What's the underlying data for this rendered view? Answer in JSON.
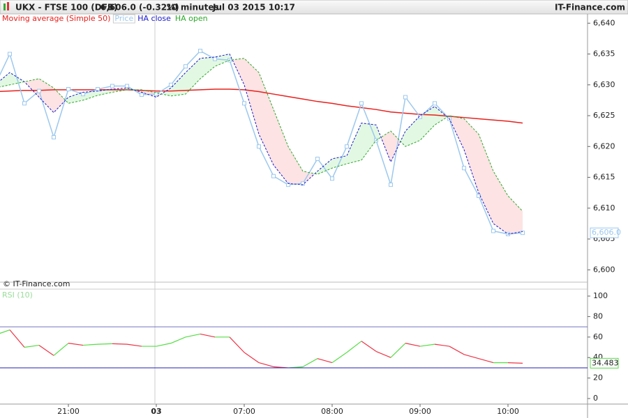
{
  "header": {
    "title": "UKX - FTSE 100 (DFB)",
    "quote": "6,606.0 (-0.32%)",
    "interval": "10 minutes",
    "date": "Jul 03 2015 10:17",
    "brand": "IT-Finance.com"
  },
  "watermark": "© IT-Finance.com",
  "chart_data": [
    {
      "type": "line",
      "fill_up": "#e3f8e3",
      "fill_down": "#fde3e3",
      "ylim": [
        6598,
        6641.5
      ],
      "yticks": [
        {
          "value": 6600,
          "label": "6,600"
        },
        {
          "value": 6605,
          "label": "6,605"
        },
        {
          "value": 6610,
          "label": "6,610"
        },
        {
          "value": 6615,
          "label": "6,615"
        },
        {
          "value": 6620,
          "label": "6,620"
        },
        {
          "value": 6625,
          "label": "6,625"
        },
        {
          "value": 6630,
          "label": "6,630"
        },
        {
          "value": 6635,
          "label": "6,635"
        },
        {
          "value": 6640,
          "label": "6,640"
        }
      ],
      "series": [
        {
          "name": "Moving average (Simple 50)",
          "color": "#e8201c",
          "style": "solid",
          "values": [
            6628.9,
            6629,
            6629.1,
            6629.1,
            6629.2,
            6629.2,
            6629.2,
            6629.2,
            6629.2,
            6629.2,
            6629.1,
            6629,
            6629,
            6629.1,
            6629.2,
            6629.3,
            6629.3,
            6629.2,
            6628.9,
            6628.5,
            6628.1,
            6627.7,
            6627.3,
            6627,
            6626.6,
            6626.3,
            6626,
            6625.6,
            6625.4,
            6625.2,
            6625.1,
            6624.9,
            6624.7,
            6624.5,
            6624.3,
            6624.1,
            6623.8
          ]
        },
        {
          "name": "Price",
          "color": "#9cc8ee",
          "style": "solid",
          "markers": true,
          "boxed": true,
          "values": [
            6630,
            6635,
            6627,
            6629,
            6621.5,
            6629.3,
            6628.5,
            6629.3,
            6629.8,
            6629.8,
            6628.4,
            6628.5,
            6630,
            6633,
            6635.5,
            6634.2,
            6634,
            6627,
            6620,
            6615.2,
            6613.8,
            6614,
            6618,
            6614.8,
            6620,
            6627,
            6621,
            6613.8,
            6628,
            6624.8,
            6627,
            6624.5,
            6616.5,
            6612,
            6606.3,
            6605.8,
            6606
          ],
          "value_labels": [
            null,
            null,
            null,
            null,
            null,
            null,
            null,
            null,
            null,
            null,
            null,
            null,
            null,
            null,
            null,
            null,
            null,
            null,
            null,
            null,
            null,
            null,
            null,
            null,
            null,
            null,
            null,
            null,
            null,
            null,
            null,
            null,
            null,
            null,
            null,
            null,
            "6,606.0"
          ]
        },
        {
          "name": "HA close",
          "color": "#1a1acc",
          "style": "dashed",
          "values": [
            6630,
            6632,
            6630.5,
            6628,
            6625.5,
            6628,
            6628.8,
            6629,
            6629.3,
            6629.5,
            6628.8,
            6628,
            6629.5,
            6632,
            6634.3,
            6634.5,
            6635,
            6630,
            6622,
            6617,
            6614,
            6613.8,
            6616,
            6618,
            6618.5,
            6623.8,
            6623.5,
            6617.5,
            6622.5,
            6625,
            6626.5,
            6624.5,
            6619.5,
            6612.5,
            6607.5,
            6605.8,
            6606.2
          ]
        },
        {
          "name": "HA open",
          "color": "#2aa82a",
          "style": "dashed",
          "values": [
            6629.5,
            6630,
            6630.5,
            6631,
            6629.5,
            6627,
            6627.5,
            6628.3,
            6628.8,
            6629.2,
            6629.2,
            6628.7,
            6628.2,
            6628.5,
            6631,
            6633,
            6634,
            6634.3,
            6632,
            6626,
            6620,
            6616,
            6615.5,
            6616.5,
            6617.2,
            6617.8,
            6621,
            6622.5,
            6620,
            6621,
            6623.5,
            6625,
            6624.5,
            6622,
            6616,
            6612,
            6609.5
          ]
        }
      ]
    },
    {
      "type": "rsi",
      "title": "RSI (10)",
      "ylim": [
        -5.4,
        106.8
      ],
      "yticks": [
        0,
        20,
        40,
        60,
        80,
        100
      ],
      "levels": [
        {
          "value": 70,
          "color": "#7070c0"
        },
        {
          "value": 30,
          "color": "#2020b0"
        }
      ],
      "categories": [
        null,
        null,
        null,
        null,
        null,
        "21:00",
        null,
        null,
        null,
        null,
        null,
        "03",
        null,
        null,
        null,
        null,
        null,
        "07:00",
        null,
        null,
        null,
        null,
        null,
        "08:00",
        null,
        null,
        null,
        null,
        null,
        "09:00",
        null,
        null,
        null,
        null,
        null,
        "10:00",
        null
      ],
      "series": [
        {
          "name": "RSI",
          "up_color": "#55dd44",
          "down_color": "#ee3344",
          "values": [
            62,
            67,
            50,
            52,
            42,
            54,
            52,
            53,
            53.5,
            53,
            51,
            51,
            54,
            60,
            63,
            60,
            60,
            45,
            35,
            31,
            30,
            31,
            39,
            35,
            45,
            56,
            46,
            40,
            54,
            51,
            53,
            51,
            43,
            39,
            35,
            35,
            34.483
          ]
        }
      ]
    }
  ]
}
